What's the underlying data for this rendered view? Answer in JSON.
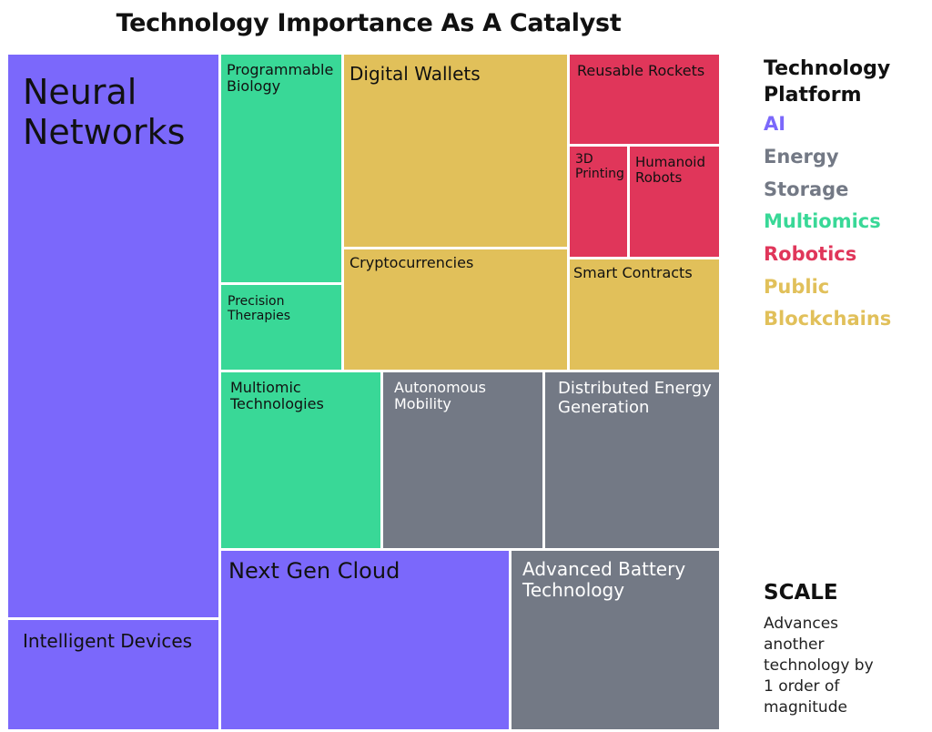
{
  "chart_data": {
    "type": "treemap",
    "title": "Technology Importance As A Catalyst",
    "legend": {
      "title": "Technology Platform",
      "items": [
        {
          "name": "AI",
          "color": "#7b68fb"
        },
        {
          "name": "Energy Storage",
          "color": "#737985"
        },
        {
          "name": "Multiomics",
          "color": "#39d897"
        },
        {
          "name": "Robotics",
          "color": "#e0365a"
        },
        {
          "name": "Public Blockchains",
          "color": "#e1c05a"
        }
      ]
    },
    "scale": {
      "title": "SCALE",
      "description": "Advances another technology by 1 order of magnitude"
    },
    "items": [
      {
        "label": "Neural Networks",
        "platform": "AI"
      },
      {
        "label": "Intelligent Devices",
        "platform": "AI"
      },
      {
        "label": "Programmable Biology",
        "platform": "Multiomics"
      },
      {
        "label": "Precision Therapies",
        "platform": "Multiomics"
      },
      {
        "label": "Digital Wallets",
        "platform": "Public Blockchains"
      },
      {
        "label": "Cryptocurrencies",
        "platform": "Public Blockchains"
      },
      {
        "label": "Reusable Rockets",
        "platform": "Robotics"
      },
      {
        "label": "3D Printing",
        "platform": "Robotics"
      },
      {
        "label": "Humanoid Robots",
        "platform": "Robotics"
      },
      {
        "label": "Smart Contracts",
        "platform": "Public Blockchains"
      },
      {
        "label": "Multiomic Technologies",
        "platform": "Multiomics"
      },
      {
        "label": "Autonomous Mobility",
        "platform": "Energy Storage"
      },
      {
        "label": "Distributed Energy Generation",
        "platform": "Energy Storage"
      },
      {
        "label": "Next Gen Cloud",
        "platform": "AI"
      },
      {
        "label": "Advanced Battery Technology",
        "platform": "Energy Storage"
      }
    ]
  }
}
